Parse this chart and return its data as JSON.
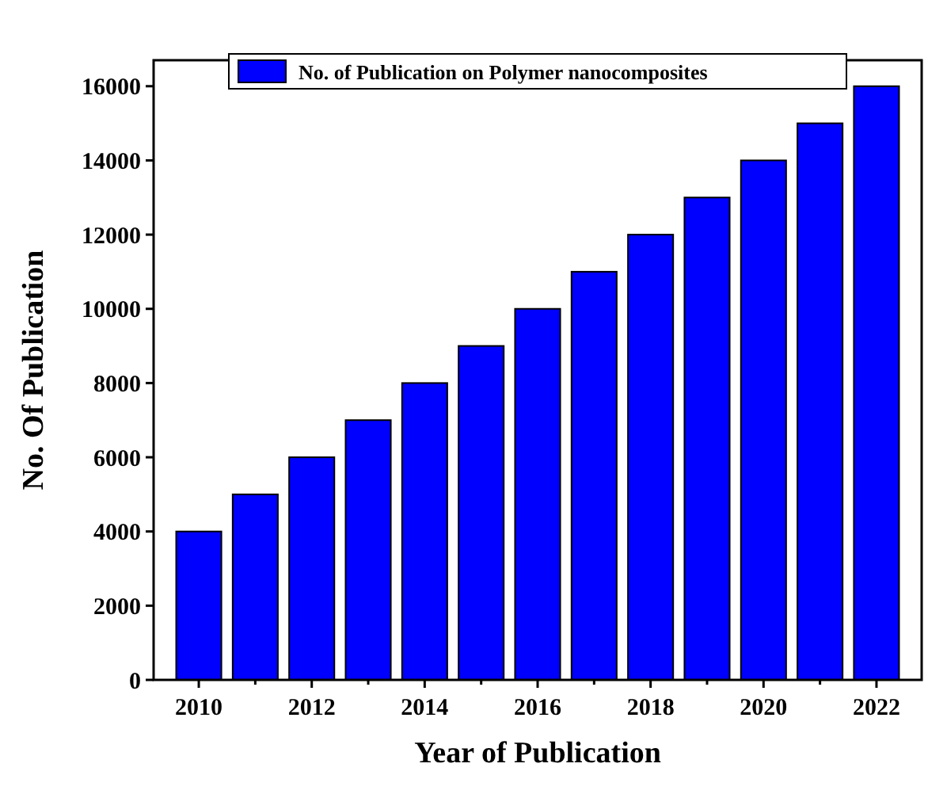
{
  "chart_data": {
    "type": "bar",
    "xlabel": "Year of Publication",
    "ylabel": "No. Of Publication",
    "categories": [
      "2010",
      null,
      "2012",
      null,
      "2014",
      null,
      "2016",
      null,
      "2018",
      null,
      "2020",
      null,
      "2022"
    ],
    "series": [
      {
        "name": "No. of Publication on Polymer nanocomposites",
        "color": "#0000ff",
        "values": [
          4000,
          5000,
          6000,
          7000,
          8000,
          9000,
          10000,
          11000,
          12000,
          13000,
          14000,
          15000,
          16000
        ]
      }
    ],
    "ylim": [
      0,
      16700
    ],
    "yticks": [
      0,
      2000,
      4000,
      6000,
      8000,
      10000,
      12000,
      14000,
      16000
    ],
    "legend": "top",
    "grid": false
  }
}
